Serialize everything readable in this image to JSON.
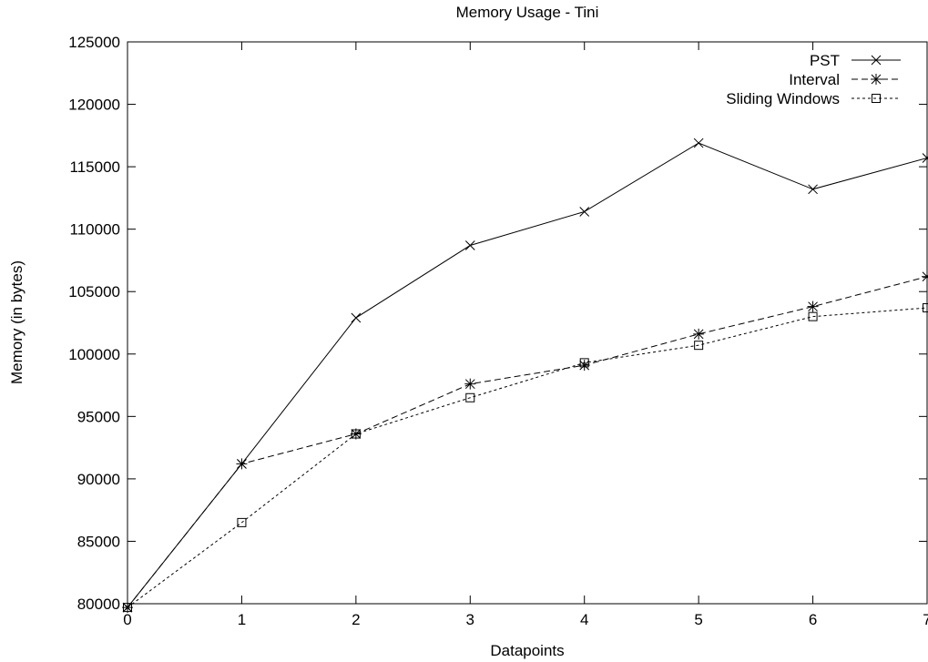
{
  "chart_data": {
    "type": "line",
    "title": "Memory Usage - Tini",
    "xlabel": "Datapoints",
    "ylabel": "Memory (in bytes)",
    "xlim": [
      0,
      7
    ],
    "ylim": [
      80000,
      125000
    ],
    "x_ticks": [
      "0",
      "1",
      "2",
      "3",
      "4",
      "5",
      "6",
      "7"
    ],
    "y_ticks": [
      "80000",
      "85000",
      "90000",
      "95000",
      "100000",
      "105000",
      "110000",
      "115000",
      "120000",
      "125000"
    ],
    "grid": false,
    "legend_position": "top-right",
    "x": [
      0,
      1,
      2,
      3,
      4,
      5,
      6,
      7
    ],
    "series": [
      {
        "name": "PST",
        "marker": "x",
        "line_style": "solid",
        "values": [
          79700,
          91200,
          102900,
          108700,
          111400,
          116900,
          113200,
          115700
        ]
      },
      {
        "name": "Interval",
        "marker": "asterisk",
        "line_style": "dashed",
        "values": [
          79700,
          91200,
          93600,
          97600,
          99100,
          101600,
          103800,
          106200
        ]
      },
      {
        "name": "Sliding Windows",
        "marker": "square",
        "line_style": "dotted",
        "values": [
          79700,
          86500,
          93600,
          96500,
          99300,
          100700,
          103000,
          103700
        ]
      }
    ]
  }
}
